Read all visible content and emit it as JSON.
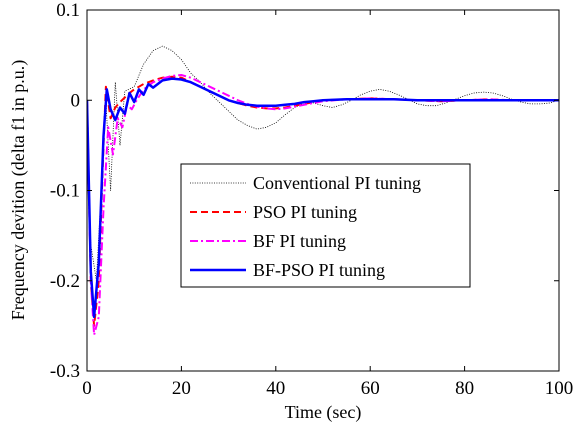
{
  "chart_data": {
    "type": "line",
    "xlabel": "Time (sec)",
    "ylabel": "Frequency devition  (delta f1 in p.u.)",
    "xlim": [
      0,
      100
    ],
    "ylim": [
      -0.3,
      0.1
    ],
    "xticks": [
      0,
      20,
      40,
      60,
      80,
      100
    ],
    "xtick_labels": [
      "0",
      "20",
      "40",
      "60",
      "80",
      "100"
    ],
    "yticks": [
      -0.3,
      -0.2,
      -0.1,
      0,
      0.1
    ],
    "ytick_labels": [
      "-0.3",
      "-0.2",
      "-0.1",
      "0",
      "0.1"
    ],
    "grid": false,
    "legend_position": "center",
    "series": [
      {
        "name": "Conventional PI tuning",
        "color": "#000000",
        "style": "dotted",
        "x": [
          0,
          0.8,
          2,
          3,
          4,
          5,
          6,
          7,
          8,
          10,
          12,
          14,
          16,
          18,
          20,
          22,
          24,
          26,
          28,
          30,
          32,
          34,
          36,
          38,
          40,
          42,
          44,
          46,
          48,
          50,
          52,
          54,
          56,
          58,
          60,
          62,
          64,
          66,
          68,
          70,
          72,
          74,
          76,
          78,
          80,
          82,
          84,
          86,
          88,
          90,
          92,
          94,
          96,
          98,
          100
        ],
        "y": [
          0,
          -0.16,
          -0.2,
          -0.1,
          0,
          -0.1,
          0.02,
          -0.05,
          0.01,
          0.015,
          0.04,
          0.055,
          0.06,
          0.055,
          0.045,
          0.03,
          0.02,
          0.008,
          -0.002,
          -0.012,
          -0.022,
          -0.028,
          -0.032,
          -0.03,
          -0.025,
          -0.016,
          -0.008,
          -0.003,
          -0.003,
          -0.006,
          -0.008,
          -0.005,
          0,
          0.006,
          0.01,
          0.012,
          0.01,
          0.006,
          0.001,
          -0.004,
          -0.006,
          -0.006,
          -0.003,
          0.001,
          0.005,
          0.008,
          0.009,
          0.008,
          0.005,
          0.001,
          -0.002,
          -0.004,
          -0.004,
          -0.003,
          0
        ]
      },
      {
        "name": "PSO PI tuning",
        "color": "#ff0000",
        "style": "dashed",
        "x": [
          0,
          0.8,
          1.5,
          2.5,
          3.5,
          4,
          5,
          6,
          7,
          8,
          9,
          10,
          12,
          14,
          16,
          18,
          20,
          22,
          24,
          26,
          28,
          30,
          32,
          34,
          36,
          38,
          40,
          42,
          44,
          46,
          48,
          50,
          55,
          60,
          65,
          70,
          75,
          80,
          85,
          90,
          95,
          100
        ],
        "y": [
          0,
          -0.2,
          -0.25,
          -0.2,
          -0.05,
          0.015,
          -0.02,
          -0.008,
          -0.002,
          0.003,
          0.008,
          0.012,
          0.018,
          0.022,
          0.025,
          0.026,
          0.025,
          0.02,
          0.015,
          0.01,
          0.005,
          0,
          -0.003,
          -0.006,
          -0.008,
          -0.009,
          -0.009,
          -0.008,
          -0.006,
          -0.004,
          -0.002,
          0,
          0.001,
          0.002,
          0.001,
          0,
          -0.001,
          0,
          0.001,
          0,
          0,
          0
        ]
      },
      {
        "name": "BF PI tuning",
        "color": "#ff00ff",
        "style": "dashdot",
        "x": [
          0,
          0.8,
          1.5,
          2.5,
          3.5,
          4.5,
          5.5,
          6.5,
          7.5,
          8.5,
          9.5,
          10.5,
          12,
          14,
          16,
          18,
          20,
          22,
          24,
          26,
          28,
          30,
          32,
          34,
          36,
          38,
          40,
          42,
          44,
          46,
          48,
          50,
          55,
          60,
          65,
          70,
          75,
          80,
          85,
          90,
          95,
          100
        ],
        "y": [
          0,
          -0.2,
          -0.26,
          -0.24,
          -0.12,
          -0.03,
          -0.06,
          -0.02,
          -0.03,
          -0.005,
          -0.01,
          0,
          0.012,
          0.02,
          0.024,
          0.027,
          0.028,
          0.025,
          0.02,
          0.015,
          0.01,
          0.005,
          0,
          -0.004,
          -0.007,
          -0.009,
          -0.01,
          -0.009,
          -0.007,
          -0.005,
          -0.003,
          -0.001,
          0.001,
          0.002,
          0.001,
          0,
          -0.001,
          0,
          0.001,
          0,
          0,
          0
        ]
      },
      {
        "name": "BF-PSO PI tuning",
        "color": "#0000ff",
        "style": "solid",
        "x": [
          0,
          0.8,
          1.5,
          2.5,
          3.5,
          4.2,
          5,
          6,
          7,
          8,
          9,
          10,
          11,
          12,
          13,
          14,
          16,
          18,
          20,
          22,
          24,
          26,
          28,
          30,
          32,
          34,
          36,
          38,
          40,
          42,
          44,
          46,
          48,
          50,
          55,
          60,
          65,
          70,
          75,
          80,
          85,
          90,
          95,
          100
        ],
        "y": [
          0,
          -0.19,
          -0.24,
          -0.18,
          -0.04,
          0.012,
          -0.01,
          -0.022,
          -0.008,
          -0.015,
          0.008,
          -0.002,
          0.012,
          0.006,
          0.018,
          0.014,
          0.022,
          0.024,
          0.023,
          0.02,
          0.015,
          0.01,
          0.005,
          0,
          -0.003,
          -0.005,
          -0.006,
          -0.006,
          -0.006,
          -0.005,
          -0.004,
          -0.002,
          -0.001,
          0,
          0.001,
          0.001,
          0.001,
          0,
          0,
          0,
          0,
          0,
          0,
          0
        ]
      }
    ]
  }
}
